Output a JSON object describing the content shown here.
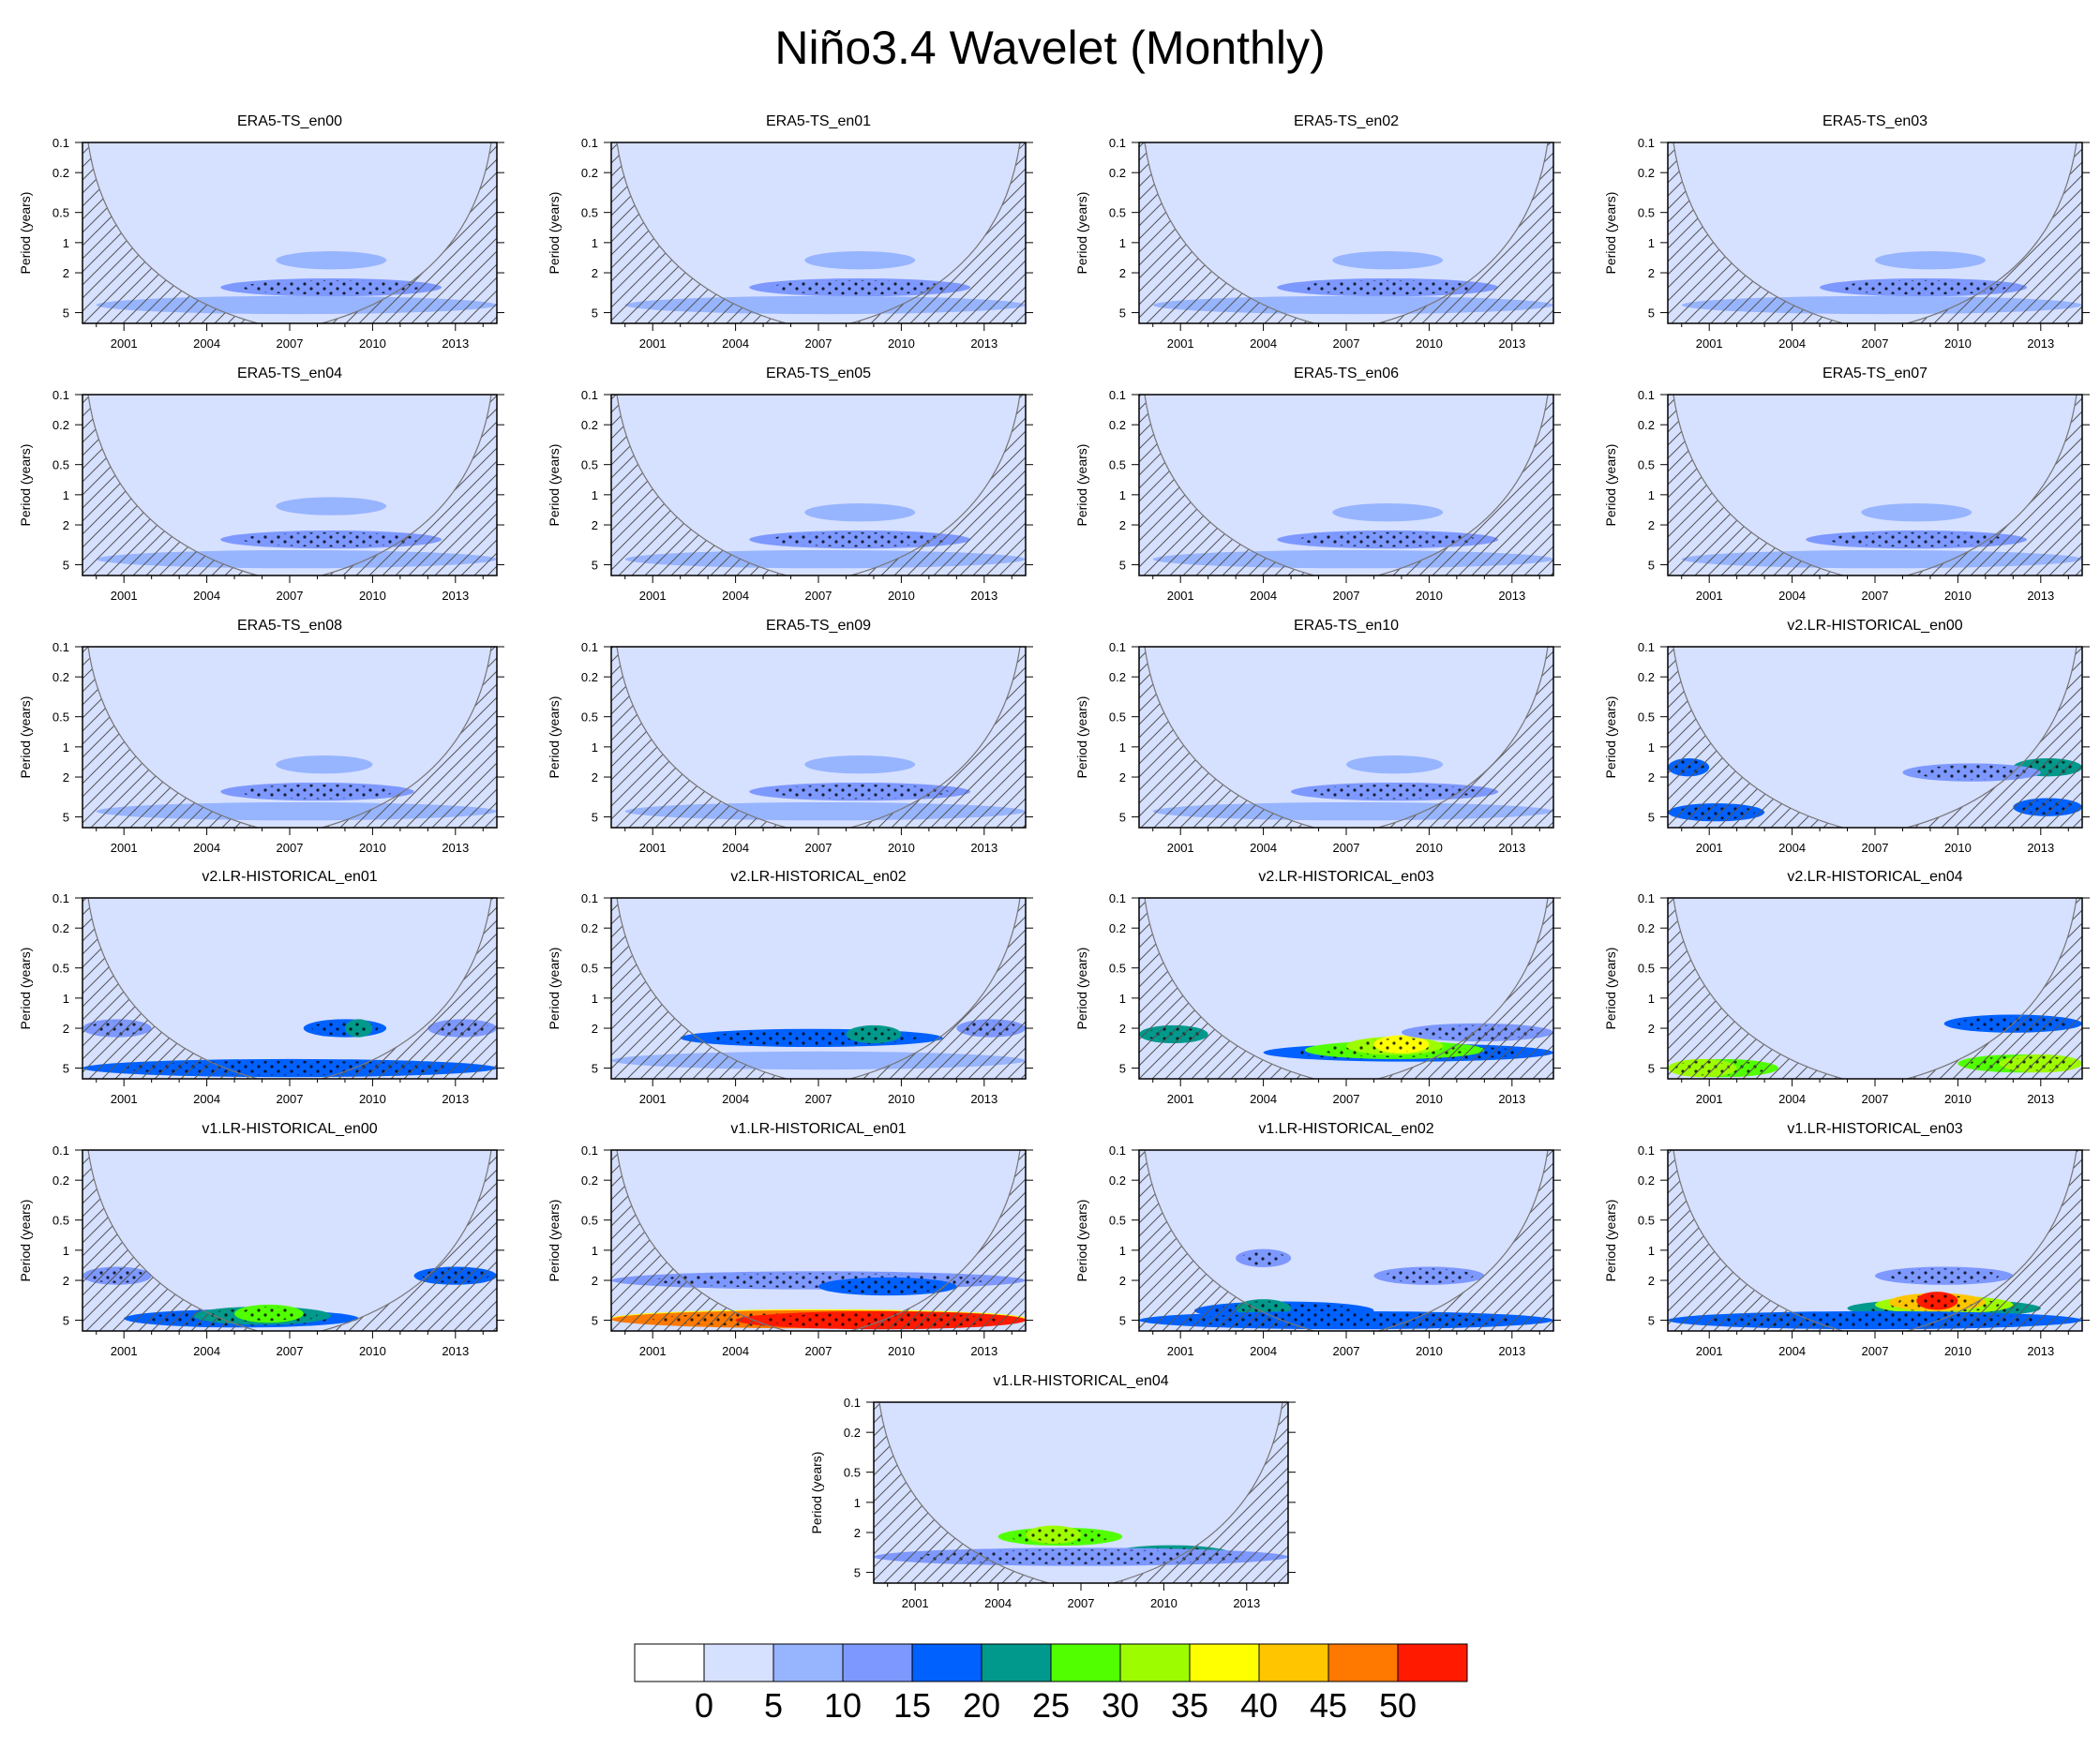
{
  "title": "Niño3.4 Wavelet (Monthly)",
  "chart_data": {
    "type": "heatmap",
    "description_axes": {
      "ylabel": "Period (years)",
      "y_ticks": [
        "0.1",
        "0.2",
        "0.5",
        "1",
        "2",
        "5"
      ],
      "x_ticks": [
        "2001",
        "2004",
        "2007",
        "2010",
        "2013"
      ],
      "x_range": [
        1999.5,
        2014.5
      ]
    },
    "panels": [
      {
        "name": "ERA5-TS_en00",
        "blobs": [
          {
            "x0": 2004.5,
            "x1": 2012.5,
            "p": 2.8,
            "level": 3
          },
          {
            "x0": 2006.5,
            "x1": 2010.5,
            "p": 1.5,
            "level": 2
          },
          {
            "x0": 2000,
            "x1": 2014.5,
            "p": 4.2,
            "level": 2
          }
        ]
      },
      {
        "name": "ERA5-TS_en01",
        "blobs": [
          {
            "x0": 2004.5,
            "x1": 2012.5,
            "p": 2.8,
            "level": 3
          },
          {
            "x0": 2006.5,
            "x1": 2010.5,
            "p": 1.5,
            "level": 2
          },
          {
            "x0": 2000,
            "x1": 2014.5,
            "p": 4.2,
            "level": 2
          }
        ]
      },
      {
        "name": "ERA5-TS_en02",
        "blobs": [
          {
            "x0": 2004.5,
            "x1": 2012.5,
            "p": 2.8,
            "level": 3
          },
          {
            "x0": 2006.5,
            "x1": 2010.5,
            "p": 1.5,
            "level": 2
          },
          {
            "x0": 2000,
            "x1": 2014.5,
            "p": 4.2,
            "level": 2
          }
        ]
      },
      {
        "name": "ERA5-TS_en03",
        "blobs": [
          {
            "x0": 2005,
            "x1": 2012.5,
            "p": 2.8,
            "level": 3
          },
          {
            "x0": 2007,
            "x1": 2011,
            "p": 1.5,
            "level": 2
          },
          {
            "x0": 2000,
            "x1": 2014.5,
            "p": 4.2,
            "level": 2
          }
        ]
      },
      {
        "name": "ERA5-TS_en04",
        "blobs": [
          {
            "x0": 2004.5,
            "x1": 2012.5,
            "p": 2.8,
            "level": 3
          },
          {
            "x0": 2006.5,
            "x1": 2010.5,
            "p": 1.3,
            "level": 2
          },
          {
            "x0": 2000,
            "x1": 2014.5,
            "p": 4.4,
            "level": 2
          }
        ]
      },
      {
        "name": "ERA5-TS_en05",
        "blobs": [
          {
            "x0": 2004.5,
            "x1": 2012.5,
            "p": 2.8,
            "level": 3
          },
          {
            "x0": 2006.5,
            "x1": 2010.5,
            "p": 1.5,
            "level": 2
          },
          {
            "x0": 2000,
            "x1": 2014.5,
            "p": 4.4,
            "level": 2
          }
        ]
      },
      {
        "name": "ERA5-TS_en06",
        "blobs": [
          {
            "x0": 2004.5,
            "x1": 2012.5,
            "p": 2.8,
            "level": 3
          },
          {
            "x0": 2006.5,
            "x1": 2010.5,
            "p": 1.5,
            "level": 2
          },
          {
            "x0": 2000,
            "x1": 2014.5,
            "p": 4.4,
            "level": 2
          }
        ]
      },
      {
        "name": "ERA5-TS_en07",
        "blobs": [
          {
            "x0": 2004.5,
            "x1": 2012.5,
            "p": 2.8,
            "level": 3
          },
          {
            "x0": 2006.5,
            "x1": 2010.5,
            "p": 1.5,
            "level": 2
          },
          {
            "x0": 2000,
            "x1": 2014.5,
            "p": 4.4,
            "level": 2
          }
        ]
      },
      {
        "name": "ERA5-TS_en08",
        "blobs": [
          {
            "x0": 2004.5,
            "x1": 2011.5,
            "p": 2.8,
            "level": 3
          },
          {
            "x0": 2006.5,
            "x1": 2010,
            "p": 1.5,
            "level": 2
          },
          {
            "x0": 2000,
            "x1": 2014.5,
            "p": 4.4,
            "level": 2
          }
        ]
      },
      {
        "name": "ERA5-TS_en09",
        "blobs": [
          {
            "x0": 2004.5,
            "x1": 2012.5,
            "p": 2.8,
            "level": 3
          },
          {
            "x0": 2006.5,
            "x1": 2010.5,
            "p": 1.5,
            "level": 2
          },
          {
            "x0": 2000,
            "x1": 2014.5,
            "p": 4.4,
            "level": 2
          }
        ]
      },
      {
        "name": "ERA5-TS_en10",
        "blobs": [
          {
            "x0": 2005,
            "x1": 2012.5,
            "p": 2.8,
            "level": 3
          },
          {
            "x0": 2007,
            "x1": 2010.5,
            "p": 1.5,
            "level": 2
          },
          {
            "x0": 2000,
            "x1": 2014.5,
            "p": 4.4,
            "level": 2
          }
        ]
      },
      {
        "name": "v2.LR-HISTORICAL_en00",
        "blobs": [
          {
            "x0": 1999.5,
            "x1": 2003,
            "p": 4.5,
            "level": 4
          },
          {
            "x0": 1999.5,
            "x1": 2001,
            "p": 1.6,
            "level": 4
          },
          {
            "x0": 2012,
            "x1": 2014.5,
            "p": 1.6,
            "level": 5
          },
          {
            "x0": 2012,
            "x1": 2014.5,
            "p": 4.0,
            "level": 4
          },
          {
            "x0": 2008,
            "x1": 2013,
            "p": 1.8,
            "level": 3
          }
        ]
      },
      {
        "name": "v2.LR-HISTORICAL_en01",
        "blobs": [
          {
            "x0": 1999.5,
            "x1": 2002,
            "p": 2.0,
            "level": 3
          },
          {
            "x0": 2007.5,
            "x1": 2010.5,
            "p": 2.0,
            "level": 4
          },
          {
            "x0": 2009,
            "x1": 2010,
            "p": 2.0,
            "level": 5
          },
          {
            "x0": 1999.5,
            "x1": 2014.5,
            "p": 5.0,
            "level": 4
          },
          {
            "x0": 2012,
            "x1": 2014.5,
            "p": 2.0,
            "level": 3
          }
        ]
      },
      {
        "name": "v2.LR-HISTORICAL_en02",
        "blobs": [
          {
            "x0": 2002,
            "x1": 2011.5,
            "p": 2.5,
            "level": 4
          },
          {
            "x0": 2008,
            "x1": 2010,
            "p": 2.3,
            "level": 5
          },
          {
            "x0": 1999.5,
            "x1": 2014.5,
            "p": 4.2,
            "level": 2
          },
          {
            "x0": 2012,
            "x1": 2014.5,
            "p": 2.0,
            "level": 3
          }
        ]
      },
      {
        "name": "v2.LR-HISTORICAL_en03",
        "blobs": [
          {
            "x0": 2004,
            "x1": 2014.5,
            "p": 3.5,
            "level": 4
          },
          {
            "x0": 2005.5,
            "x1": 2012,
            "p": 3.3,
            "level": 6
          },
          {
            "x0": 2007,
            "x1": 2010.5,
            "p": 3.0,
            "level": 7
          },
          {
            "x0": 2008,
            "x1": 2010,
            "p": 2.9,
            "level": 8
          },
          {
            "x0": 1999.5,
            "x1": 2002,
            "p": 2.3,
            "level": 5
          },
          {
            "x0": 2009,
            "x1": 2014.5,
            "p": 2.2,
            "level": 3
          }
        ]
      },
      {
        "name": "v2.LR-HISTORICAL_en04",
        "blobs": [
          {
            "x0": 1999.5,
            "x1": 2003.5,
            "p": 5.0,
            "level": 6
          },
          {
            "x0": 1999.5,
            "x1": 2002,
            "p": 5.0,
            "level": 7
          },
          {
            "x0": 2010,
            "x1": 2014.5,
            "p": 4.5,
            "level": 6
          },
          {
            "x0": 2011.5,
            "x1": 2014.5,
            "p": 4.5,
            "level": 7
          },
          {
            "x0": 2009.5,
            "x1": 2014.5,
            "p": 1.8,
            "level": 4
          }
        ]
      },
      {
        "name": "v1.LR-HISTORICAL_en00",
        "blobs": [
          {
            "x0": 2001,
            "x1": 2009.5,
            "p": 4.8,
            "level": 4
          },
          {
            "x0": 2003.5,
            "x1": 2008.5,
            "p": 4.5,
            "level": 5
          },
          {
            "x0": 2005,
            "x1": 2007.5,
            "p": 4.3,
            "level": 6
          },
          {
            "x0": 1999.5,
            "x1": 2002,
            "p": 1.8,
            "level": 3
          },
          {
            "x0": 2011.5,
            "x1": 2014.5,
            "p": 1.8,
            "level": 4
          }
        ]
      },
      {
        "name": "v1.LR-HISTORICAL_en01",
        "blobs": [
          {
            "x0": 1999.5,
            "x1": 2014.5,
            "p": 4.8,
            "level": 8
          },
          {
            "x0": 1999.5,
            "x1": 2014.5,
            "p": 4.9,
            "level": 10
          },
          {
            "x0": 2004,
            "x1": 2014.5,
            "p": 5.0,
            "level": 11
          },
          {
            "x0": 1999.5,
            "x1": 2014.5,
            "p": 2.0,
            "level": 3
          },
          {
            "x0": 2007,
            "x1": 2012,
            "p": 2.3,
            "level": 4
          }
        ]
      },
      {
        "name": "v1.LR-HISTORICAL_en02",
        "blobs": [
          {
            "x0": 2001.5,
            "x1": 2008,
            "p": 4.0,
            "level": 4
          },
          {
            "x0": 2003,
            "x1": 2005,
            "p": 3.8,
            "level": 5
          },
          {
            "x0": 1999.5,
            "x1": 2014.5,
            "p": 5.0,
            "level": 4
          },
          {
            "x0": 2003,
            "x1": 2005,
            "p": 1.2,
            "level": 3
          },
          {
            "x0": 2008,
            "x1": 2012,
            "p": 1.8,
            "level": 3
          }
        ]
      },
      {
        "name": "v1.LR-HISTORICAL_en03",
        "blobs": [
          {
            "x0": 2006,
            "x1": 2013,
            "p": 3.8,
            "level": 5
          },
          {
            "x0": 2007,
            "x1": 2012,
            "p": 3.5,
            "level": 7
          },
          {
            "x0": 2007.5,
            "x1": 2011,
            "p": 3.3,
            "level": 9
          },
          {
            "x0": 2008.5,
            "x1": 2010,
            "p": 3.2,
            "level": 11
          },
          {
            "x0": 1999.5,
            "x1": 2014.5,
            "p": 5.0,
            "level": 4
          },
          {
            "x0": 2007,
            "x1": 2012,
            "p": 1.8,
            "level": 3
          }
        ]
      },
      {
        "name": "v1.LR-HISTORICAL_en04",
        "blobs": [
          {
            "x0": 2004,
            "x1": 2008.5,
            "p": 2.2,
            "level": 6
          },
          {
            "x0": 2005,
            "x1": 2007,
            "p": 2.1,
            "level": 7
          },
          {
            "x0": 2008,
            "x1": 2012.5,
            "p": 3.3,
            "level": 5
          },
          {
            "x0": 1999.5,
            "x1": 2014.5,
            "p": 3.5,
            "level": 3
          }
        ]
      }
    ],
    "colorbar": {
      "levels": [
        "0",
        "5",
        "10",
        "15",
        "20",
        "25",
        "30",
        "35",
        "40",
        "45",
        "50"
      ],
      "colors": [
        "#ffffff",
        "#d6e0ff",
        "#97b4ff",
        "#7d98ff",
        "#0061ff",
        "#00998c",
        "#51ff00",
        "#9efc00",
        "#ffff00",
        "#ffc600",
        "#ff7800",
        "#ff1a00"
      ]
    }
  }
}
